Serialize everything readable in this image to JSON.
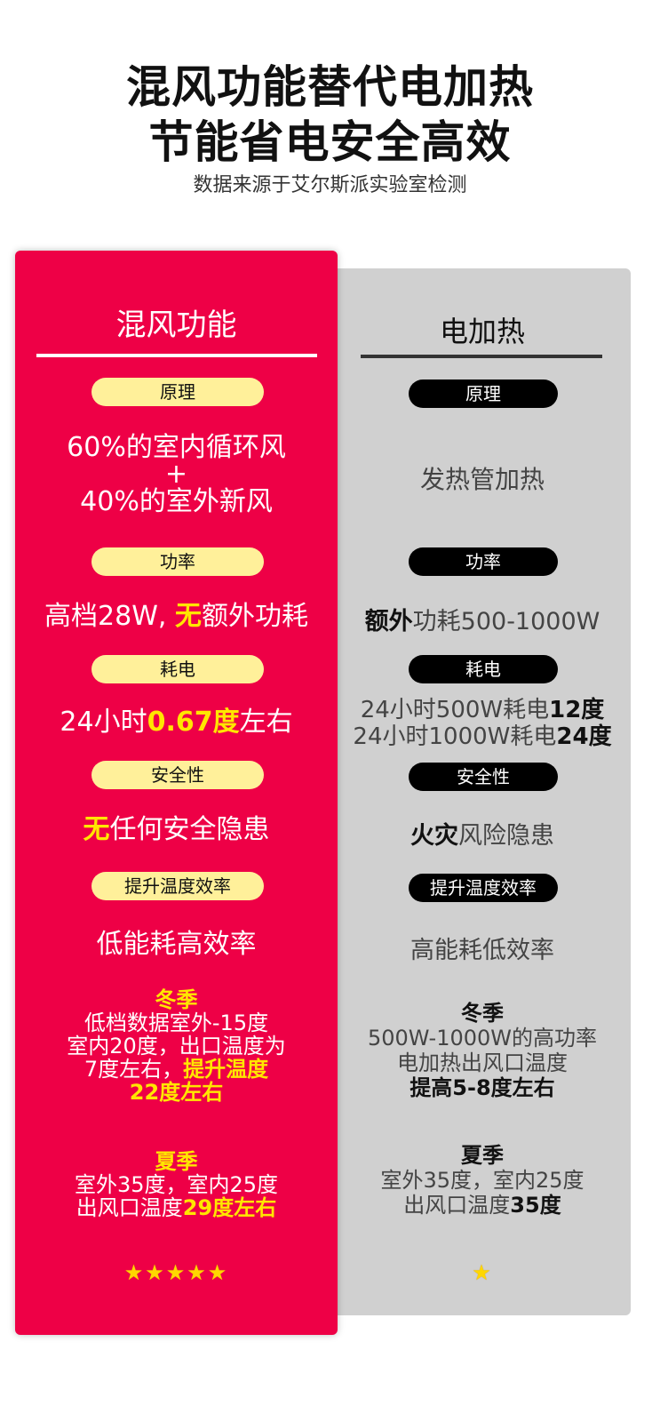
{
  "header": {
    "title_line1": "混风功能替代电加热",
    "title_line2": "节能省电安全高效",
    "subtitle": "数据来源于艾尔斯派实验室检测"
  },
  "left": {
    "title": "混风功能",
    "labels": [
      "原理",
      "功率",
      "耗电",
      "安全性",
      "提升温度效率"
    ],
    "principle": [
      "60%的室内循环风",
      "+",
      "40%的室外新风"
    ],
    "power": {
      "a": "高档28W, ",
      "b": "无",
      "c": "额外功耗"
    },
    "consumption": {
      "a": "24小时",
      "b": "0.67度",
      "c": "左右"
    },
    "safety": {
      "a": "无",
      "b": "任何安全隐患"
    },
    "efficiency": "低能耗高效率",
    "winter": {
      "title": "冬季",
      "l1": "低档数据室外-15度",
      "l2": "室内20度，出口温度为",
      "l3a": "7度左右，",
      "l3b": "提升温度",
      "l4": "22度左右"
    },
    "summer": {
      "title": "夏季",
      "l1": "室外35度，室内25度",
      "l2a": "出风口温度",
      "l2b": "29度左右"
    },
    "rating": 5,
    "stars": "★★★★★"
  },
  "right": {
    "title": "电加热",
    "labels": [
      "原理",
      "功率",
      "耗电",
      "安全性",
      "提升温度效率"
    ],
    "principle": "发热管加热",
    "power": {
      "a": "额外",
      "b": "功耗500-1000W"
    },
    "consumption": {
      "l1a": "24小时500W耗电",
      "l1b": "12度",
      "l2a": "24小时1000W耗电",
      "l2b": "24度"
    },
    "safety": {
      "a": "火灾",
      "b": "风险隐患"
    },
    "efficiency": "高能耗低效率",
    "winter": {
      "title": "冬季",
      "l1": "500W-1000W的高功率",
      "l2": "电加热出风口温度",
      "l3": "提高5-8度左右"
    },
    "summer": {
      "title": "夏季",
      "l1": "室外35度，室内25度",
      "l2a": "出风口温度",
      "l2b": "35度"
    },
    "rating": 1,
    "stars": "★"
  },
  "colors": {
    "red": "#ee0046",
    "gray": "#d0d0d0",
    "highlight": "#ffe600",
    "pill_yellow": "#fff09a"
  }
}
